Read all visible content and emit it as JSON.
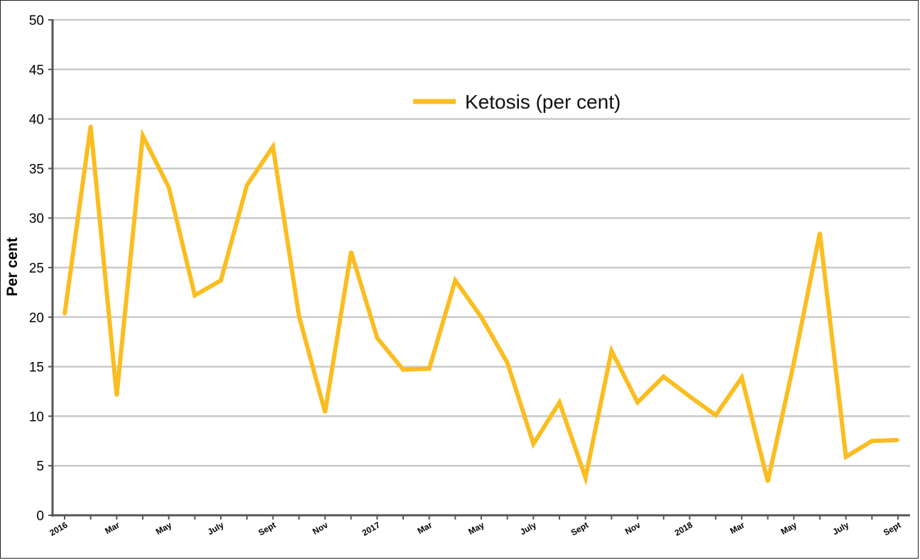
{
  "chart_data": {
    "type": "line",
    "title": "",
    "xlabel": "",
    "ylabel": "Per cent",
    "ylim": [
      0,
      50
    ],
    "yticks": [
      0,
      5,
      10,
      15,
      20,
      25,
      30,
      35,
      40,
      45,
      50
    ],
    "grid": true,
    "legend_position": "top-center",
    "x_tick_labels": [
      "2016",
      "",
      "Mar",
      "",
      "May",
      "",
      "July",
      "",
      "Sept",
      "",
      "Nov",
      "",
      "2017",
      "",
      "Mar",
      "",
      "May",
      "",
      "July",
      "",
      "Sept",
      "",
      "Nov",
      "",
      "2018",
      "",
      "Mar",
      "",
      "May",
      "",
      "July",
      "",
      "Sept"
    ],
    "x": [
      "2016-01",
      "2016-02",
      "2016-03",
      "2016-04",
      "2016-05",
      "2016-06",
      "2016-07",
      "2016-08",
      "2016-09",
      "2016-10",
      "2016-11",
      "2016-12",
      "2017-01",
      "2017-02",
      "2017-03",
      "2017-04",
      "2017-05",
      "2017-06",
      "2017-07",
      "2017-08",
      "2017-09",
      "2017-10",
      "2017-11",
      "2017-12",
      "2018-01",
      "2018-02",
      "2018-03",
      "2018-04",
      "2018-05",
      "2018-06",
      "2018-07",
      "2018-08",
      "2018-09"
    ],
    "series": [
      {
        "name": "Ketosis (per cent)",
        "color": "#fbbd1f",
        "values": [
          20.3,
          39.3,
          12.1,
          38.3,
          33.1,
          22.2,
          23.7,
          33.3,
          37.2,
          20.1,
          10.4,
          26.6,
          17.9,
          14.7,
          14.8,
          23.7,
          20.0,
          15.4,
          7.2,
          11.4,
          3.8,
          16.6,
          11.4,
          14.0,
          12.0,
          10.1,
          13.9,
          3.4,
          15.4,
          28.5,
          5.9,
          7.5,
          7.6
        ]
      }
    ]
  }
}
